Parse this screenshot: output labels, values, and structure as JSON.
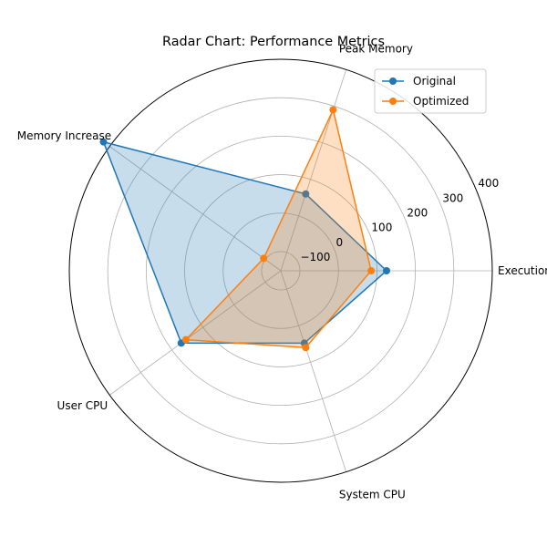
{
  "chart_data": {
    "type": "radar",
    "title": "Radar Chart: Performance Metrics",
    "categories": [
      "Execution Time",
      "Peak Memory",
      "Memory Increase",
      "User CPU",
      "System CPU"
    ],
    "radial_ticks": [
      -100,
      0,
      100,
      200,
      300,
      400
    ],
    "rlim": [
      -150,
      400
    ],
    "grid": true,
    "legend_position": "top-right",
    "series": [
      {
        "name": "Original",
        "color": "#1f77b4",
        "values": [
          125,
          60,
          420,
          170,
          48
        ]
      },
      {
        "name": "Optimized",
        "color": "#ff7f0e",
        "values": [
          85,
          290,
          -95,
          155,
          60
        ]
      }
    ]
  }
}
